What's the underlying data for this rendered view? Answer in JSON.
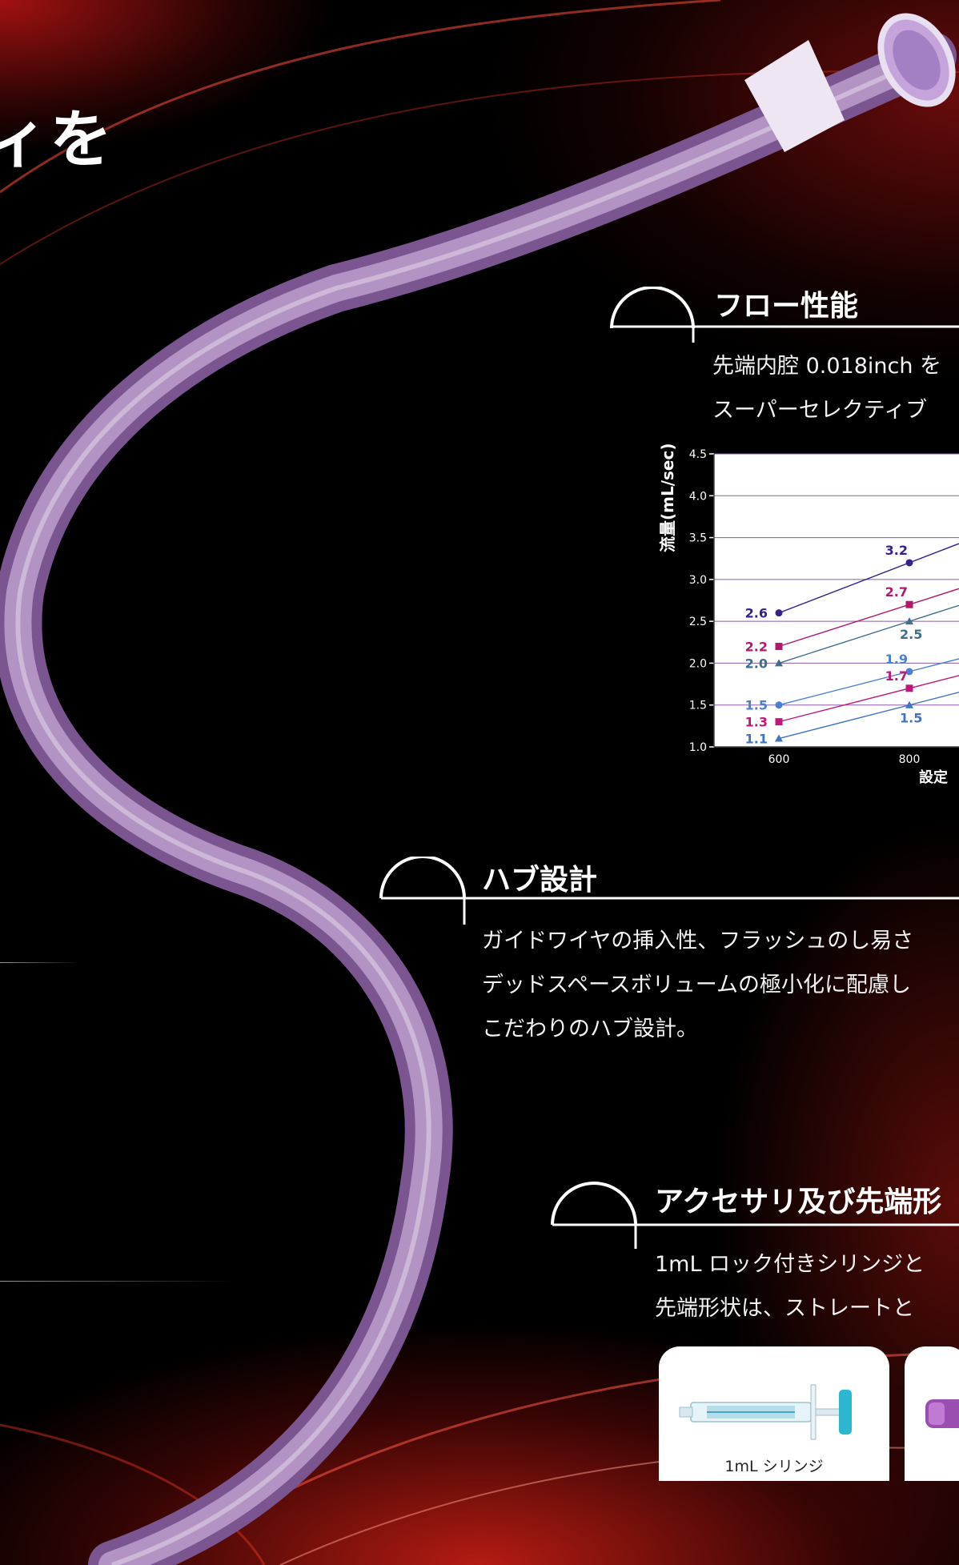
{
  "headline": "ィを",
  "sections": {
    "flow": {
      "title": "フロー性能",
      "lines": [
        "先端内腔 0.018inch を",
        "スーパーセレクティブ"
      ]
    },
    "hub": {
      "title": "ハブ設計",
      "lines": [
        "ガイドワイヤの挿入性、フラッシュのし易さ",
        "デッドスペースボリュームの極小化に配慮し",
        "こだわりのハブ設計。"
      ]
    },
    "accessory": {
      "title": "アクセサリ及び先端形",
      "lines": [
        "1mL ロック付きシリンジと",
        "先端形状は、ストレートと"
      ]
    }
  },
  "accessory_cards": [
    {
      "label": "1mL シリンジ"
    },
    {
      "label": ""
    }
  ],
  "chart_data": {
    "type": "line",
    "ylabel": "流量(mL/sec)",
    "xlabel": "設定",
    "x_ticks": [
      "600",
      "800"
    ],
    "y_ticks": [
      "1.0",
      "1.5",
      "2.0",
      "2.5",
      "3.0",
      "3.5",
      "4.0",
      "4.5"
    ],
    "ylim": [
      1.0,
      4.5
    ],
    "grid": "horizontal",
    "series": [
      {
        "marker": "circle",
        "color": "#3a1d8f",
        "x": [
          600,
          800
        ],
        "y": [
          2.6,
          3.2
        ],
        "labels": [
          "2.6",
          "3.2"
        ]
      },
      {
        "marker": "square",
        "color": "#b0196e",
        "x": [
          600,
          800
        ],
        "y": [
          2.2,
          2.7
        ],
        "labels": [
          "2.2",
          "2.7"
        ]
      },
      {
        "marker": "triangle",
        "color": "#3e6e8c",
        "x": [
          600,
          800
        ],
        "y": [
          2.0,
          2.5
        ],
        "labels": [
          "2.0",
          "2.5"
        ]
      },
      {
        "marker": "circle",
        "color": "#4a7fd6",
        "x": [
          600,
          800
        ],
        "y": [
          1.5,
          1.9
        ],
        "labels": [
          "1.5",
          "1.9"
        ]
      },
      {
        "marker": "square",
        "color": "#c0187a",
        "x": [
          600,
          800
        ],
        "y": [
          1.3,
          1.7
        ],
        "labels": [
          "1.3",
          "1.7"
        ]
      },
      {
        "marker": "triangle",
        "color": "#3f73c8",
        "x": [
          600,
          800
        ],
        "y": [
          1.1,
          1.5
        ],
        "labels": [
          "1.1",
          "1.5"
        ]
      }
    ]
  }
}
